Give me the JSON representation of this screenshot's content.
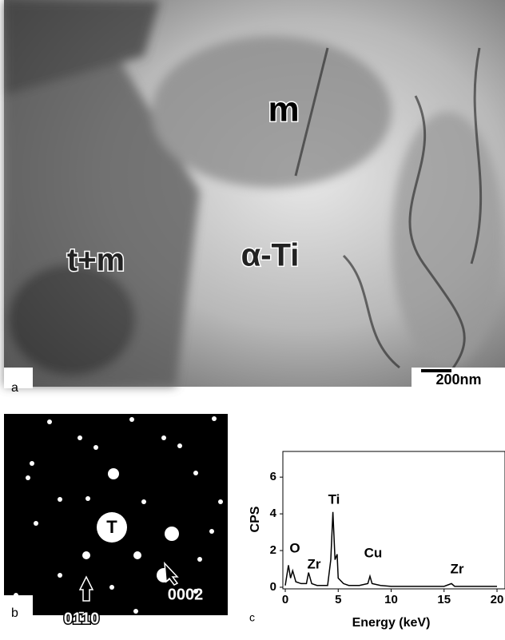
{
  "panels": {
    "a": {
      "label": "a",
      "annotations": [
        "m",
        "t+m",
        "α-Ti"
      ],
      "scale_bar": "200nm"
    },
    "b": {
      "label": "b",
      "annotations": [
        "T",
        "0002",
        "01̄10"
      ]
    },
    "c": {
      "label": "c"
    }
  },
  "chart_data": {
    "type": "line",
    "x_label": "Energy (keV)",
    "y_label": "CPS",
    "x": [
      0,
      0.3,
      0.5,
      0.7,
      1,
      1.5,
      2,
      2.2,
      2.5,
      3,
      4,
      4.3,
      4.5,
      4.7,
      4.9,
      5,
      5.5,
      6,
      7,
      7.8,
      8,
      8.2,
      9,
      10,
      12,
      15,
      15.7,
      16,
      18,
      20
    ],
    "values": [
      0.1,
      1.2,
      0.5,
      0.9,
      0.3,
      0.2,
      0.2,
      0.8,
      0.2,
      0.1,
      0.1,
      1.5,
      4.1,
      1.5,
      1.8,
      0.5,
      0.2,
      0.1,
      0.1,
      0.2,
      0.6,
      0.2,
      0.1,
      0.05,
      0.05,
      0.05,
      0.2,
      0.05,
      0.05,
      0.05
    ],
    "color": "#000000",
    "xlim": [
      0,
      20
    ],
    "xticks": [
      0,
      5,
      10,
      15,
      20
    ],
    "ylim": [
      0,
      7.4
    ],
    "yticks": [
      0,
      2,
      4,
      6
    ],
    "annotations": [
      "O",
      "Zr",
      "Ti",
      "Cu",
      "Zr"
    ]
  }
}
